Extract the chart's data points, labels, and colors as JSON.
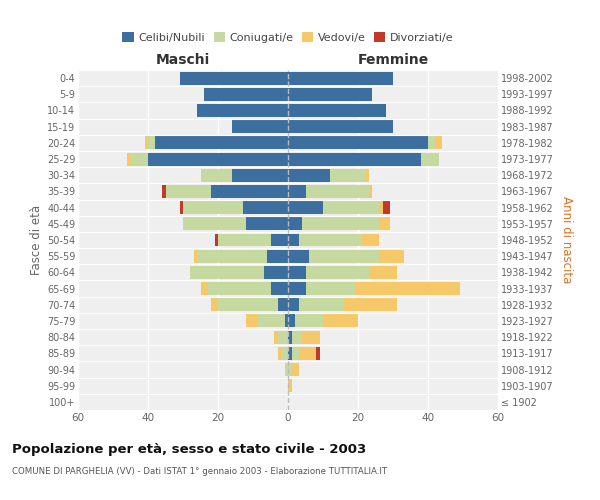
{
  "age_groups": [
    "100+",
    "95-99",
    "90-94",
    "85-89",
    "80-84",
    "75-79",
    "70-74",
    "65-69",
    "60-64",
    "55-59",
    "50-54",
    "45-49",
    "40-44",
    "35-39",
    "30-34",
    "25-29",
    "20-24",
    "15-19",
    "10-14",
    "5-9",
    "0-4"
  ],
  "birth_years": [
    "≤ 1902",
    "1903-1907",
    "1908-1912",
    "1913-1917",
    "1918-1922",
    "1923-1927",
    "1928-1932",
    "1933-1937",
    "1938-1942",
    "1943-1947",
    "1948-1952",
    "1953-1957",
    "1958-1962",
    "1963-1967",
    "1968-1972",
    "1973-1977",
    "1978-1982",
    "1983-1987",
    "1988-1992",
    "1993-1997",
    "1998-2002"
  ],
  "maschi": {
    "celibi": [
      0,
      0,
      0,
      0,
      0,
      1,
      3,
      5,
      7,
      6,
      5,
      12,
      13,
      22,
      16,
      40,
      38,
      16,
      26,
      24,
      31
    ],
    "coniugati": [
      0,
      0,
      1,
      2,
      3,
      8,
      17,
      18,
      21,
      20,
      15,
      18,
      17,
      13,
      9,
      5,
      2,
      0,
      0,
      0,
      0
    ],
    "vedovi": [
      0,
      0,
      0,
      1,
      1,
      3,
      2,
      2,
      0,
      1,
      0,
      0,
      0,
      0,
      0,
      1,
      1,
      0,
      0,
      0,
      0
    ],
    "divorziati": [
      0,
      0,
      0,
      0,
      0,
      0,
      0,
      0,
      0,
      0,
      1,
      0,
      1,
      1,
      0,
      0,
      0,
      0,
      0,
      0,
      0
    ]
  },
  "femmine": {
    "nubili": [
      0,
      0,
      0,
      1,
      1,
      2,
      3,
      5,
      5,
      6,
      3,
      4,
      10,
      5,
      12,
      38,
      40,
      30,
      28,
      24,
      30
    ],
    "coniugate": [
      0,
      0,
      1,
      2,
      3,
      8,
      13,
      14,
      18,
      20,
      18,
      22,
      16,
      18,
      10,
      5,
      2,
      0,
      0,
      0,
      0
    ],
    "vedove": [
      0,
      1,
      2,
      5,
      5,
      10,
      15,
      30,
      8,
      7,
      5,
      3,
      1,
      1,
      1,
      0,
      2,
      0,
      0,
      0,
      0
    ],
    "divorziate": [
      0,
      0,
      0,
      1,
      0,
      0,
      0,
      0,
      0,
      0,
      0,
      0,
      2,
      0,
      0,
      0,
      0,
      0,
      0,
      0,
      0
    ]
  },
  "color_celibi": "#3c6e9f",
  "color_coniugati": "#c5d9a0",
  "color_vedovi": "#f5c96a",
  "color_divorziati": "#c0392b",
  "xlim": 60,
  "title": "Popolazione per età, sesso e stato civile - 2003",
  "subtitle": "COMUNE DI PARGHELIA (VV) - Dati ISTAT 1° gennaio 2003 - Elaborazione TUTTITALIA.IT",
  "ylabel_left": "Fasce di età",
  "ylabel_right": "Anni di nascita",
  "xlabel_left": "Maschi",
  "xlabel_right": "Femmine",
  "bg_color": "#ffffff",
  "plot_bg": "#efefef"
}
